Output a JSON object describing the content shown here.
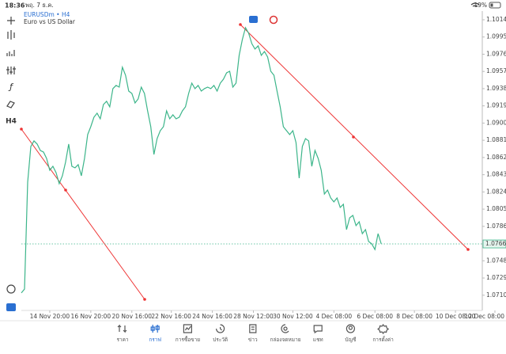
{
  "status_bar": {
    "time": "18:36",
    "date": "พฤ. 7 ธ.ค.",
    "battery": "19%"
  },
  "toolbar": {
    "timeframe": "H4"
  },
  "chart_data": {
    "type": "line",
    "title": "EURUSDm • H4",
    "subtitle": "Euro vs US Dollar",
    "color": "#3cb58a",
    "values": [
      1.07125,
      1.07168,
      1.08348,
      1.08742,
      1.08803,
      1.08768,
      1.08698,
      1.0868,
      1.0861,
      1.08479,
      1.08523,
      1.08453,
      1.08331,
      1.08418,
      1.08567,
      1.08768,
      1.08523,
      1.08506,
      1.08541,
      1.08418,
      1.0861,
      1.08873,
      1.0896,
      1.09065,
      1.09109,
      1.09047,
      1.09205,
      1.0924,
      1.09179,
      1.0938,
      1.09415,
      1.09397,
      1.09616,
      1.09528,
      1.09353,
      1.09327,
      1.09222,
      1.09266,
      1.09397,
      1.09327,
      1.09135,
      1.0896,
      1.08654,
      1.08829,
      1.08916,
      1.0896,
      1.09135,
      1.09047,
      1.09091,
      1.09047,
      1.09065,
      1.09135,
      1.09179,
      1.09327,
      1.09441,
      1.0938,
      1.09415,
      1.09353,
      1.0938,
      1.09397,
      1.0938,
      1.09415,
      1.09353,
      1.09441,
      1.09484,
      1.09554,
      1.09572,
      1.09397,
      1.09441,
      1.09747,
      1.09921,
      1.10053,
      1.09991,
      1.09878,
      1.09817,
      1.09852,
      1.09747,
      1.0979,
      1.09729,
      1.09572,
      1.09528,
      1.09353,
      1.09179,
      1.0896,
      1.08916,
      1.08873,
      1.08916,
      1.08785,
      1.08392,
      1.08742,
      1.08829,
      1.08803,
      1.08523,
      1.08698,
      1.0861,
      1.08479,
      1.08217,
      1.08261,
      1.08173,
      1.0813,
      1.08173,
      1.08069,
      1.08104,
      1.07824,
      1.07955,
      1.07981,
      1.07868,
      1.07911,
      1.0778,
      1.07824,
      1.07693,
      1.07667,
      1.07605,
      1.0778,
      1.07667
    ],
    "current_price": 1.07666,
    "xlim": [
      0,
      146
    ],
    "xticks": [
      {
        "value": 9,
        "label": "14 Nov 20:00"
      },
      {
        "value": 22,
        "label": "16 Nov 20:00"
      },
      {
        "value": 35,
        "label": "20 Nov 16:00"
      },
      {
        "value": 47.5,
        "label": "22 Nov 16:00"
      },
      {
        "value": 60.5,
        "label": "24 Nov 16:00"
      },
      {
        "value": 73.5,
        "label": "28 Nov 12:00"
      },
      {
        "value": 86,
        "label": "30 Nov 12:00"
      },
      {
        "value": 99,
        "label": "4 Dec 08:00"
      },
      {
        "value": 112,
        "label": "6 Dec 08:00"
      },
      {
        "value": 124.5,
        "label": "8 Dec 08:00"
      },
      {
        "value": 137.5,
        "label": "10 Dec 08:00"
      },
      {
        "value": 150,
        "label": "12 Dec 08:00"
      }
    ],
    "ylim": [
      1.06932,
      1.10236
    ],
    "yticks": [
      {
        "value": 1.1014,
        "label": "1.10140"
      },
      {
        "value": 1.0995,
        "label": "1.09950"
      },
      {
        "value": 1.0976,
        "label": "1.09760"
      },
      {
        "value": 1.0957,
        "label": "1.09570"
      },
      {
        "value": 1.0938,
        "label": "1.09380"
      },
      {
        "value": 1.0919,
        "label": "1.09190"
      },
      {
        "value": 1.09,
        "label": "1.09000"
      },
      {
        "value": 1.0881,
        "label": "1.08810"
      },
      {
        "value": 1.0862,
        "label": "1.08620"
      },
      {
        "value": 1.0843,
        "label": "1.08430"
      },
      {
        "value": 1.0824,
        "label": "1.08240"
      },
      {
        "value": 1.0805,
        "label": "1.08050"
      },
      {
        "value": 1.0786,
        "label": "1.07860"
      },
      {
        "value": 1.0748,
        "label": "1.07480"
      },
      {
        "value": 1.0729,
        "label": "1.07290"
      },
      {
        "value": 1.071,
        "label": "1.07100"
      }
    ]
  },
  "nav": {
    "items": [
      "ราคา",
      "กราฟ",
      "การซื้อขาย",
      "ประวัติ",
      "ข่าว",
      "กล่องจดหมาย",
      "แชท",
      "บัญชี",
      "การตั้งค่า"
    ],
    "active": 1
  }
}
